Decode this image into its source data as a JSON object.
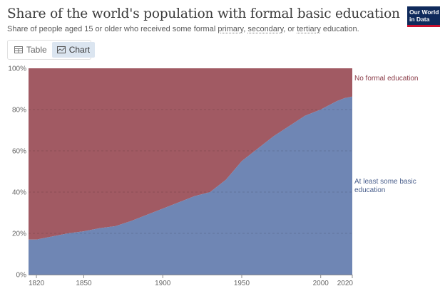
{
  "header": {
    "title": "Share of the world's population with formal basic education",
    "subtitle_prefix": "Share of people aged 15 or older who received some formal ",
    "term_primary": "primary",
    "sep1": ", ",
    "term_secondary": "secondary",
    "sep2": ", or ",
    "term_tertiary": "tertiary",
    "subtitle_suffix": " education."
  },
  "logo": {
    "line1": "Our World",
    "line2": "in Data"
  },
  "tabs": [
    {
      "label": "Table",
      "icon": "table-icon",
      "active": false
    },
    {
      "label": "Chart",
      "icon": "chart-icon",
      "active": true
    }
  ],
  "colors": {
    "basic": "#6f86b4",
    "none": "#a15a63",
    "basic_label": "#4a5f8c",
    "none_label": "#8a3b47"
  },
  "chart_data": {
    "type": "area",
    "stacked": true,
    "normalized": true,
    "x": [
      1820,
      1830,
      1840,
      1850,
      1860,
      1870,
      1880,
      1890,
      1900,
      1910,
      1920,
      1930,
      1940,
      1950,
      1960,
      1970,
      1980,
      1990,
      2000,
      2010,
      2015,
      2020
    ],
    "series": [
      {
        "name": "At least some basic education",
        "values": [
          17,
          18.5,
          20,
          21,
          22.5,
          23.5,
          26,
          29,
          32,
          35,
          38,
          40,
          46,
          55,
          61,
          67,
          72,
          77,
          80,
          84,
          85.5,
          86.3
        ]
      },
      {
        "name": "No formal education",
        "values": [
          83,
          81.5,
          80,
          79,
          77.5,
          76.5,
          74,
          71,
          68,
          65,
          62,
          60,
          54,
          45,
          39,
          33,
          28,
          23,
          20,
          16,
          14.5,
          13.7
        ]
      }
    ],
    "xlim": [
      1815,
      2020
    ],
    "ylim": [
      0,
      100
    ],
    "xticks": [
      {
        "value": 1820,
        "label": "1820"
      },
      {
        "value": 1850,
        "label": "1850"
      },
      {
        "value": 1900,
        "label": "1900"
      },
      {
        "value": 1950,
        "label": "1950"
      },
      {
        "value": 2000,
        "label": "2000"
      },
      {
        "value": 2020,
        "label": "2020"
      }
    ],
    "yticks": [
      {
        "value": 0,
        "label": "0%"
      },
      {
        "value": 20,
        "label": "20%"
      },
      {
        "value": 40,
        "label": "40%"
      },
      {
        "value": 60,
        "label": "60%"
      },
      {
        "value": 80,
        "label": "80%"
      },
      {
        "value": 100,
        "label": "100%"
      }
    ],
    "grid": true,
    "labels": {
      "none_label": "No formal education",
      "basic_label_line1": "At least some basic",
      "basic_label_line2": "education"
    }
  }
}
